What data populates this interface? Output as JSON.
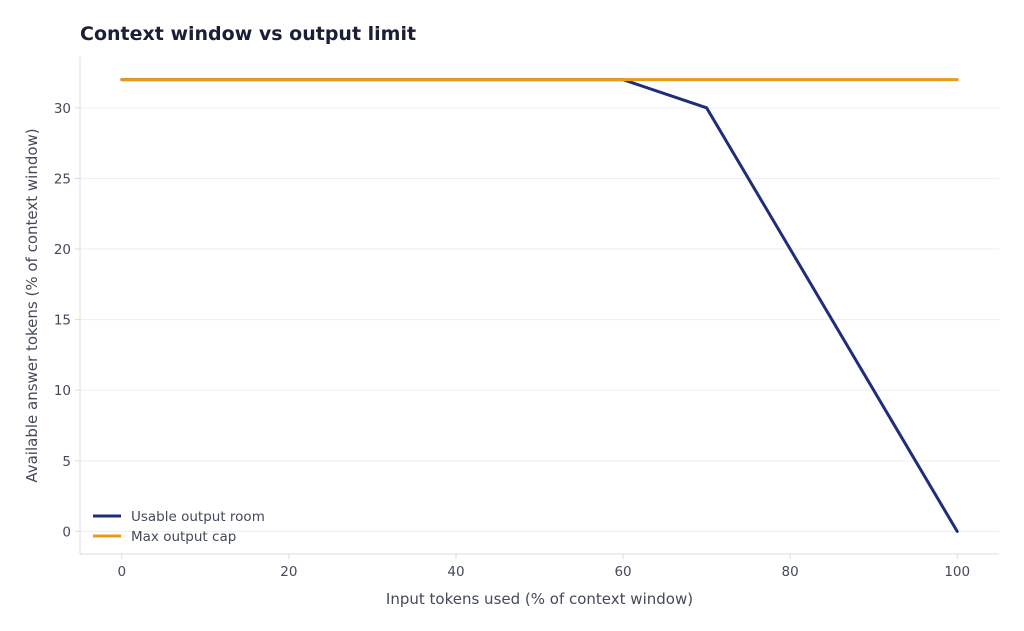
{
  "chart_data": {
    "type": "line",
    "title": "Context window vs output limit",
    "xlabel": "Input tokens used (% of context window)",
    "ylabel": "Available answer tokens (% of context window)",
    "xlim": [
      -5,
      105
    ],
    "ylim": [
      -1.6,
      33.6
    ],
    "xticks": [
      0,
      20,
      40,
      60,
      80,
      100
    ],
    "yticks": [
      0,
      5,
      10,
      15,
      20,
      25,
      30
    ],
    "grid": "horizontal",
    "legend_position": "lower-left",
    "series": [
      {
        "name": "Usable output room",
        "color": "#1f2d7a",
        "points": [
          [
            0,
            32
          ],
          [
            60,
            32
          ],
          [
            70,
            30
          ],
          [
            100,
            0
          ]
        ]
      },
      {
        "name": "Max output cap",
        "color": "#e89b1a",
        "points": [
          [
            0,
            32
          ],
          [
            100,
            32
          ]
        ]
      }
    ]
  }
}
